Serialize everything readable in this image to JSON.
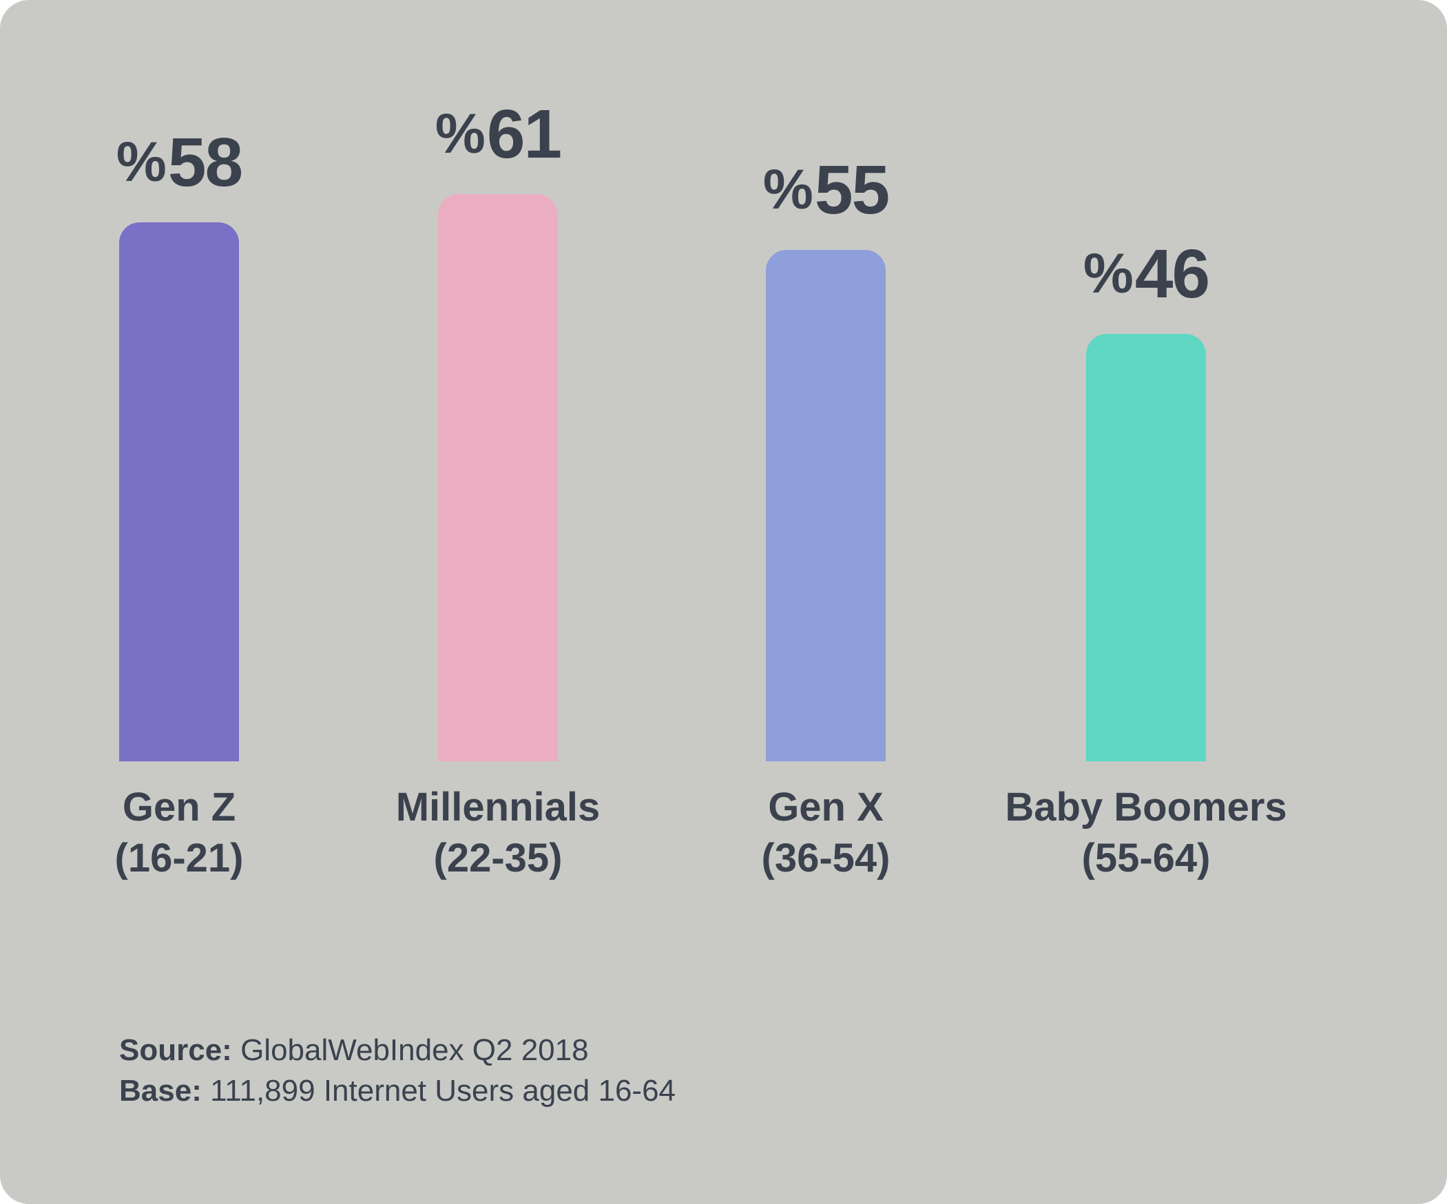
{
  "card": {
    "background": "#c9cac6",
    "page_background": "#ffffff",
    "text_color": "#3b424e"
  },
  "chart_data": {
    "type": "bar",
    "orientation": "vertical",
    "title": "",
    "categories": [
      "Gen Z",
      "Millennials",
      "Gen X",
      "Baby Boomers"
    ],
    "age_ranges": [
      "(16-21)",
      "(22-35)",
      "(36-54)",
      "(55-64)"
    ],
    "values": [
      58,
      61,
      55,
      46
    ],
    "value_prefix": "%",
    "value_labels": [
      "%58",
      "%61",
      "%55",
      "%46"
    ],
    "bar_colors": [
      "#7a70c6",
      "#ebadc1",
      "#8f9fdb",
      "#5fd7c3"
    ],
    "ylim": [
      0,
      65
    ],
    "axes_visible": false,
    "grid": false,
    "legend": false
  },
  "footer": {
    "source_label": "Source:",
    "source_value": "GlobalWebIndex Q2 2018",
    "base_label": "Base:",
    "base_value": "111,899 Internet Users aged 16-64"
  }
}
